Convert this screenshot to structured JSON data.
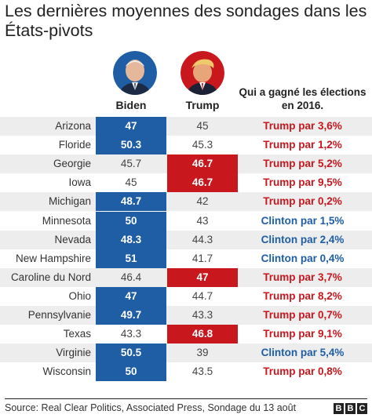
{
  "title": "Les dernières moyennes des sondages dans les États-pivots",
  "columns": {
    "biden": "Biden",
    "trump": "Trump",
    "won_2016": "Qui a gagné les élections en 2016."
  },
  "colors": {
    "biden": "#1f5da5",
    "trump": "#c8171d"
  },
  "chart_data": {
    "type": "table",
    "title": "Les dernières moyennes des sondages dans les États-pivots",
    "columns": [
      "Biden",
      "Trump",
      "Qui a gagné les élections en 2016."
    ],
    "rows": [
      {
        "state": "Arizona",
        "biden": "47",
        "trump": "45",
        "leader": "biden",
        "won": "Trump par 3,6%",
        "won_by": "trump"
      },
      {
        "state": "Floride",
        "biden": "50.3",
        "trump": "45.3",
        "leader": "biden",
        "won": "Trump par 1,2%",
        "won_by": "trump"
      },
      {
        "state": "Georgie",
        "biden": "45.7",
        "trump": "46.7",
        "leader": "trump",
        "won": "Trump par 5,2%",
        "won_by": "trump"
      },
      {
        "state": "Iowa",
        "biden": "45",
        "trump": "46.7",
        "leader": "trump",
        "won": "Trump par 9,5%",
        "won_by": "trump"
      },
      {
        "state": "Michigan",
        "biden": "48.7",
        "trump": "42",
        "leader": "biden",
        "won": "Trump par 0,2%",
        "won_by": "trump"
      },
      {
        "state": "Minnesota",
        "biden": "50",
        "trump": "43",
        "leader": "biden",
        "won": "Clinton par 1,5%",
        "won_by": "clinton"
      },
      {
        "state": "Nevada",
        "biden": "48.3",
        "trump": "44.3",
        "leader": "biden",
        "won": "Clinton par 2,4%",
        "won_by": "clinton"
      },
      {
        "state": "New Hampshire",
        "biden": "51",
        "trump": "41.7",
        "leader": "biden",
        "won": "Clinton par 0,4%",
        "won_by": "clinton"
      },
      {
        "state": "Caroline du Nord",
        "biden": "46.4",
        "trump": "47",
        "leader": "trump",
        "won": "Trump par 3,7%",
        "won_by": "trump"
      },
      {
        "state": "Ohio",
        "biden": "47",
        "trump": "44.7",
        "leader": "biden",
        "won": "Trump par 8,2%",
        "won_by": "trump"
      },
      {
        "state": "Pennsylvanie",
        "biden": "49.7",
        "trump": "43.3",
        "leader": "biden",
        "won": "Trump par 0,7%",
        "won_by": "trump"
      },
      {
        "state": "Texas",
        "biden": "43.3",
        "trump": "46.8",
        "leader": "trump",
        "won": "Trump par 9,1%",
        "won_by": "trump"
      },
      {
        "state": "Virginie",
        "biden": "50.5",
        "trump": "39",
        "leader": "biden",
        "won": "Clinton par 5,4%",
        "won_by": "clinton"
      },
      {
        "state": "Wisconsin",
        "biden": "50",
        "trump": "43.5",
        "leader": "biden",
        "won": "Trump par 0,8%",
        "won_by": "trump"
      }
    ]
  },
  "footer": {
    "source": "Source: Real Clear Politics, Associated Press, Sondage du 13 août",
    "logo_letters": [
      "B",
      "B",
      "C"
    ]
  },
  "avatars": {
    "biden_icon": "biden-portrait-icon",
    "trump_icon": "trump-portrait-icon"
  }
}
